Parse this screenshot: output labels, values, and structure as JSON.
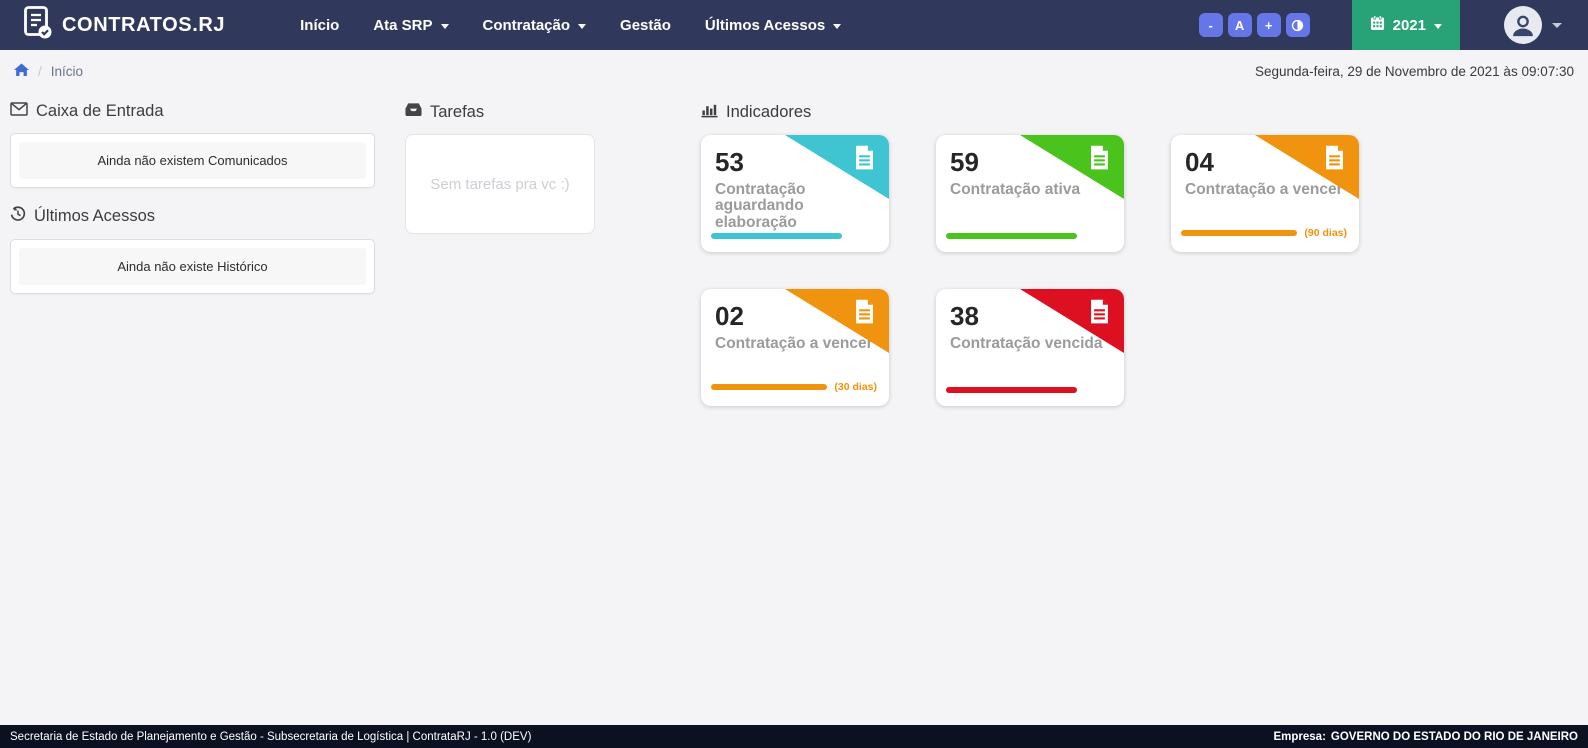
{
  "navbar": {
    "brand": "CONTRATOS.RJ",
    "menu": [
      {
        "label": "Início",
        "dropdown": false
      },
      {
        "label": "Ata SRP",
        "dropdown": true
      },
      {
        "label": "Contratação",
        "dropdown": true
      },
      {
        "label": "Gestão",
        "dropdown": false
      },
      {
        "label": "Últimos Acessos",
        "dropdown": true
      }
    ],
    "accessibility_buttons": [
      {
        "name": "font-decrease",
        "label": "-"
      },
      {
        "name": "font-default",
        "label": "A"
      },
      {
        "name": "font-increase",
        "label": "+"
      },
      {
        "name": "contrast-toggle",
        "label": "",
        "icon": "contrast-icon"
      }
    ],
    "year_selector": {
      "label": "2021",
      "icon": "calendar-icon"
    }
  },
  "breadcrumb": {
    "separator": "/",
    "current": "Início"
  },
  "datetime": "Segunda-feira, 29 de Novembro de 2021 às 09:07:30",
  "sections": {
    "inbox": {
      "title": "Caixa de Entrada",
      "icon": "envelope-icon",
      "empty_message": "Ainda não existem Comunicados"
    },
    "history": {
      "title": "Últimos Acessos",
      "icon": "history-icon",
      "empty_message": "Ainda não existe Histórico"
    },
    "tasks": {
      "title": "Tarefas",
      "icon": "inbox-icon",
      "empty_message": "Sem tarefas pra vc :)"
    },
    "indicators": {
      "title": "Indicadores",
      "icon": "bar-chart-icon"
    }
  },
  "indicator_cards": [
    {
      "value": "53",
      "label": "Contratação aguardando elaboração",
      "note": "",
      "color": "#3fc5d2",
      "progress_pct": 79
    },
    {
      "value": "59",
      "label": "Contratação ativa",
      "note": "",
      "color": "#4bc31d",
      "progress_pct": 79
    },
    {
      "value": "04",
      "label": "Contratação a vencer",
      "note": "(90 dias)",
      "color": "#f0930e",
      "progress_pct": 70
    },
    {
      "value": "02",
      "label": "Contratação a vencer",
      "note": "(30 dias)",
      "color": "#f0930e",
      "progress_pct": 70
    },
    {
      "value": "38",
      "label": "Contratação vencida",
      "note": "",
      "color": "#dd1021",
      "progress_pct": 79
    }
  ],
  "footer": {
    "left_text": "Secretaria de Estado de Planejamento e Gestão - Subsecretaria de Logística | ContrataRJ - 1.0 (DEV)",
    "company_label": "Empresa:",
    "company_name": "GOVERNO DO ESTADO DO RIO DE JANEIRO"
  },
  "colors": {
    "navbar": "#30395c",
    "footer": "#0b1120",
    "accessibility_button": "#6577e8",
    "year_button": "#27a377",
    "breadcrumb_home": "#3e6bd8"
  }
}
